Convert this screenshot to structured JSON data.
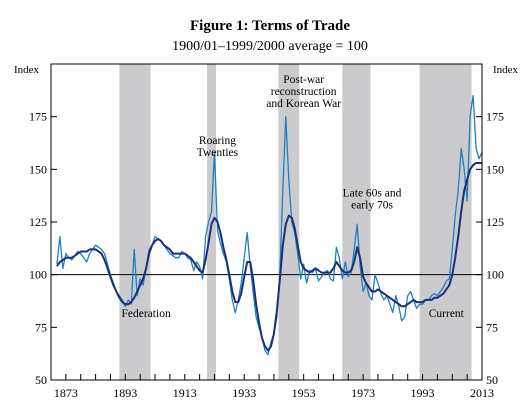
{
  "chart_data": {
    "type": "line",
    "title": "Figure 1: Terms of Trade",
    "subtitle": "1900/01–1999/2000 average = 100",
    "ylabel_left": "Index",
    "ylabel_right": "Index",
    "xlim": [
      1868,
      2013
    ],
    "ylim": [
      50,
      200
    ],
    "y_ticks": [
      50,
      75,
      100,
      125,
      150,
      175
    ],
    "x_ticks": [
      1873,
      1893,
      1913,
      1933,
      1953,
      1973,
      1993,
      2013
    ],
    "x_tick_labels": [
      "1873",
      "1893",
      "1913",
      "1933",
      "1953",
      "1973",
      "1993",
      "2013"
    ],
    "reference_line": 100,
    "shaded_periods": [
      {
        "start": 1891,
        "end": 1901.5
      },
      {
        "start": 1920.5,
        "end": 1923.5
      },
      {
        "start": 1944.5,
        "end": 1951.5
      },
      {
        "start": 1966,
        "end": 1975.5
      },
      {
        "start": 1992,
        "end": 2009.5
      }
    ],
    "annotations": [
      {
        "text": [
          "Federation"
        ],
        "x": 1900,
        "y": 80
      },
      {
        "text": [
          "Roaring",
          "Twenties"
        ],
        "x": 1924,
        "y": 162
      },
      {
        "text": [
          "Post-war",
          "reconstruction",
          "and Korean War"
        ],
        "x": 1953,
        "y": 191
      },
      {
        "text": [
          "Late 60s and",
          "early 70s"
        ],
        "x": 1976,
        "y": 137
      },
      {
        "text": [
          "Current"
        ],
        "x": 2001,
        "y": 80
      }
    ],
    "colors": {
      "series_1": "#1f7fc0",
      "series_2": "#1c2f7a",
      "shading": "#cbcbcd",
      "axis": "#000000"
    },
    "series": [
      {
        "style": "light-blue thin, annual",
        "x": [
          1870,
          1871,
          1872,
          1873,
          1874,
          1875,
          1876,
          1877,
          1878,
          1879,
          1880,
          1881,
          1882,
          1883,
          1884,
          1885,
          1886,
          1887,
          1888,
          1889,
          1890,
          1891,
          1892,
          1893,
          1894,
          1895,
          1896,
          1897,
          1898,
          1899,
          1900,
          1901,
          1902,
          1903,
          1904,
          1905,
          1906,
          1907,
          1908,
          1909,
          1910,
          1911,
          1912,
          1913,
          1914,
          1915,
          1916,
          1917,
          1918,
          1919,
          1920,
          1921,
          1922,
          1923,
          1924,
          1925,
          1926,
          1927,
          1928,
          1929,
          1930,
          1931,
          1932,
          1933,
          1934,
          1935,
          1936,
          1937,
          1938,
          1939,
          1940,
          1941,
          1942,
          1943,
          1944,
          1945,
          1946,
          1947,
          1948,
          1949,
          1950,
          1951,
          1952,
          1953,
          1954,
          1955,
          1956,
          1957,
          1958,
          1959,
          1960,
          1961,
          1962,
          1963,
          1964,
          1965,
          1966,
          1967,
          1968,
          1969,
          1970,
          1971,
          1972,
          1973,
          1974,
          1975,
          1976,
          1977,
          1978,
          1979,
          1980,
          1981,
          1982,
          1983,
          1984,
          1985,
          1986,
          1987,
          1988,
          1989,
          1990,
          1991,
          1992,
          1993,
          1994,
          1995,
          1996,
          1997,
          1998,
          1999,
          2000,
          2001,
          2002,
          2003,
          2004,
          2005,
          2006,
          2007,
          2008,
          2009,
          2010,
          2011,
          2012,
          2013
        ],
        "y": [
          105,
          118,
          103,
          110,
          108,
          107,
          109,
          111,
          110,
          108,
          106,
          110,
          112,
          114,
          113,
          112,
          110,
          105,
          100,
          96,
          92,
          90,
          88,
          85,
          88,
          86,
          112,
          90,
          98,
          95,
          103,
          112,
          114,
          118,
          117,
          116,
          114,
          112,
          110,
          109,
          108,
          108,
          111,
          110,
          108,
          107,
          102,
          106,
          104,
          98,
          118,
          125,
          130,
          158,
          121,
          115,
          110,
          106,
          98,
          88,
          82,
          88,
          96,
          108,
          120,
          104,
          92,
          80,
          75,
          70,
          64,
          62,
          68,
          72,
          80,
          101,
          140,
          175,
          145,
          125,
          120,
          110,
          98,
          105,
          96,
          102,
          101,
          103,
          97,
          99,
          101,
          102,
          98,
          97,
          113,
          108,
          98,
          106,
          99,
          101,
          112,
          124,
          104,
          92,
          96,
          90,
          88,
          100,
          96,
          91,
          88,
          90,
          86,
          82,
          90,
          85,
          78,
          80,
          90,
          92,
          88,
          84,
          86,
          86,
          88,
          88,
          90,
          91,
          90,
          92,
          94,
          97,
          98,
          112,
          128,
          140,
          160,
          150,
          135,
          175,
          185,
          160,
          155,
          158
        ]
      },
      {
        "style": "dark navy thick, smoothed",
        "x": [
          1870,
          1871,
          1872,
          1873,
          1874,
          1875,
          1876,
          1877,
          1878,
          1879,
          1880,
          1881,
          1882,
          1883,
          1884,
          1885,
          1886,
          1887,
          1888,
          1889,
          1890,
          1891,
          1892,
          1893,
          1894,
          1895,
          1896,
          1897,
          1898,
          1899,
          1900,
          1901,
          1902,
          1903,
          1904,
          1905,
          1906,
          1907,
          1908,
          1909,
          1910,
          1911,
          1912,
          1913,
          1914,
          1915,
          1916,
          1917,
          1918,
          1919,
          1920,
          1921,
          1922,
          1923,
          1924,
          1925,
          1926,
          1927,
          1928,
          1929,
          1930,
          1931,
          1932,
          1933,
          1934,
          1935,
          1936,
          1937,
          1938,
          1939,
          1940,
          1941,
          1942,
          1943,
          1944,
          1945,
          1946,
          1947,
          1948,
          1949,
          1950,
          1951,
          1952,
          1953,
          1954,
          1955,
          1956,
          1957,
          1958,
          1959,
          1960,
          1961,
          1962,
          1963,
          1964,
          1965,
          1966,
          1967,
          1968,
          1969,
          1970,
          1971,
          1972,
          1973,
          1974,
          1975,
          1976,
          1977,
          1978,
          1979,
          1980,
          1981,
          1982,
          1983,
          1984,
          1985,
          1986,
          1987,
          1988,
          1989,
          1990,
          1991,
          1992,
          1993,
          1994,
          1995,
          1996,
          1997,
          1998,
          1999,
          2000,
          2001,
          2002,
          2003,
          2004,
          2005,
          2006,
          2007,
          2008,
          2009,
          2010,
          2011,
          2012,
          2013
        ],
        "y": [
          104,
          106,
          107,
          108,
          108,
          108,
          109,
          110,
          111,
          111,
          111,
          112,
          112,
          112,
          111,
          110,
          107,
          103,
          99,
          95,
          92,
          89,
          87,
          86,
          86,
          87,
          89,
          92,
          95,
          98,
          103,
          110,
          114,
          116,
          117,
          116,
          114,
          113,
          112,
          110,
          110,
          110,
          110,
          110,
          109,
          108,
          106,
          104,
          102,
          101,
          107,
          115,
          124,
          127,
          125,
          120,
          113,
          107,
          100,
          92,
          87,
          87,
          91,
          99,
          106,
          106,
          98,
          86,
          77,
          70,
          66,
          64,
          66,
          72,
          83,
          98,
          114,
          124,
          128,
          127,
          122,
          114,
          106,
          103,
          102,
          101,
          102,
          103,
          102,
          101,
          101,
          101,
          101,
          103,
          106,
          104,
          102,
          101,
          101,
          102,
          106,
          113,
          108,
          99,
          96,
          94,
          92,
          92,
          93,
          92,
          91,
          90,
          89,
          88,
          87,
          86,
          85,
          85,
          86,
          87,
          88,
          87,
          87,
          87,
          88,
          88,
          88,
          89,
          89,
          90,
          91,
          93,
          95,
          100,
          108,
          118,
          130,
          140,
          145,
          150,
          152,
          153,
          153,
          153
        ]
      }
    ]
  }
}
